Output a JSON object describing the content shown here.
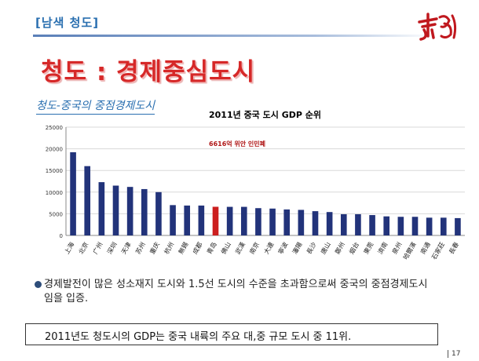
{
  "header": {
    "tag": "[남색 청도]"
  },
  "slide": {
    "title": "청도 : 경제중심도시",
    "subtitle": "청도-중국의 중점경제도시"
  },
  "chart_data": {
    "type": "bar",
    "title": "2011년  중국 도시 GDP 순위",
    "annotation": "6616억 위안 인민폐",
    "categories": [
      "上海",
      "北京",
      "广州",
      "深圳",
      "天津",
      "苏州",
      "重庆",
      "杭州",
      "無錫",
      "成都",
      "青岛",
      "佛山",
      "武漢",
      "南京",
      "大連",
      "寧波",
      "瀋陽",
      "長沙",
      "唐山",
      "鄭州",
      "烟台",
      "東莞",
      "濟南",
      "泉州",
      "哈爾濱",
      "南通",
      "石家莊",
      "長春"
    ],
    "values": [
      19200,
      16000,
      12300,
      11500,
      11200,
      10700,
      10000,
      7000,
      6900,
      6900,
      6616,
      6600,
      6600,
      6300,
      6200,
      6000,
      5900,
      5600,
      5400,
      4900,
      4900,
      4700,
      4400,
      4300,
      4300,
      4100,
      4100,
      4000
    ],
    "highlight_index": 10,
    "ylim": [
      0,
      25000
    ],
    "yticks": [
      0,
      5000,
      10000,
      15000,
      20000,
      25000
    ],
    "bar_color": "#22337a",
    "highlight_color": "#cc1f1f",
    "grid": true
  },
  "bullet": {
    "text": "경제발전이 많은 성소재지 도시와 1.5선 도시의 수준을 초과함으로써 중국의 중점경제도시임을 입증."
  },
  "summary": {
    "text": "2011년도 청도시의 GDP는 중국 내륙의 주요 대,중 규모 도시 중 11위."
  },
  "footer": {
    "page_number": "17"
  }
}
